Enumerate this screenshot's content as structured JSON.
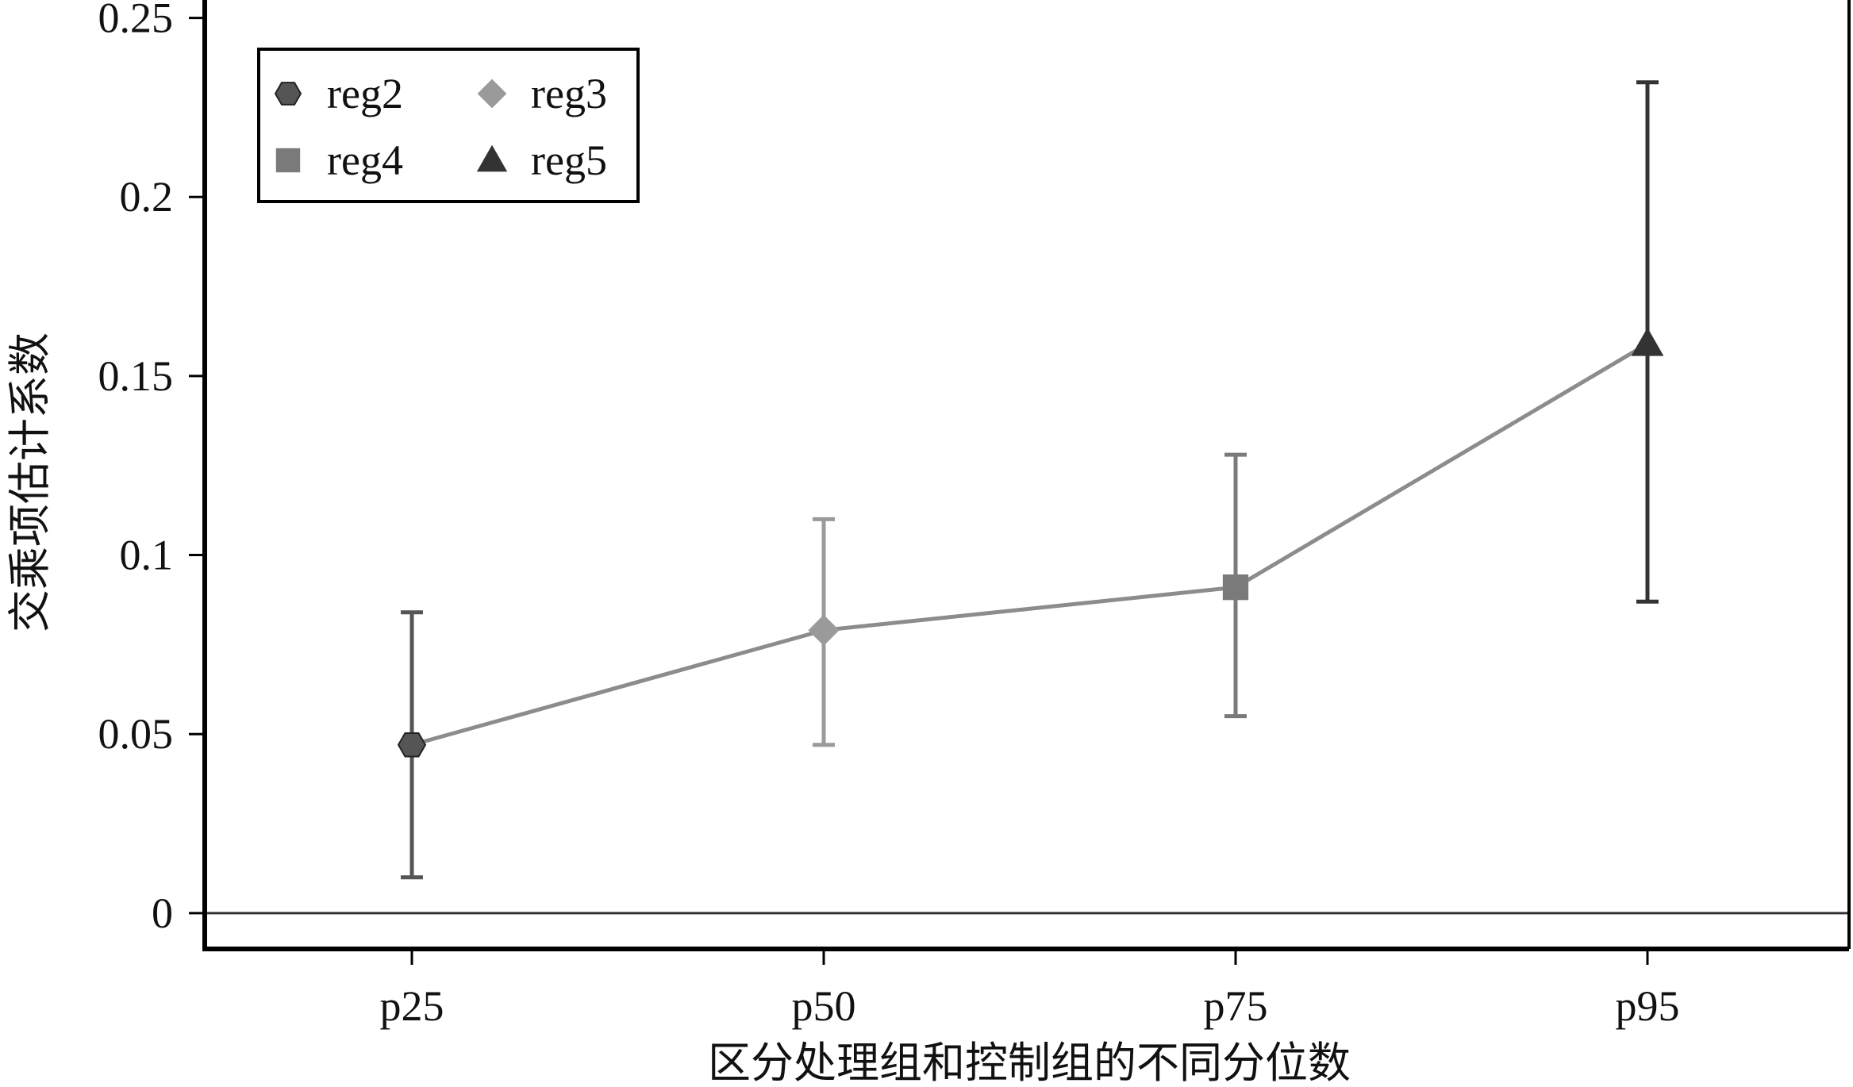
{
  "chart_data": {
    "type": "line",
    "xlabel": "区分处理组和控制组的不同分位数",
    "ylabel": "交乘项估计系数",
    "categories": [
      "p25",
      "p50",
      "p75",
      "p95"
    ],
    "ylim": [
      -0.01,
      0.255
    ],
    "yticks": [
      0,
      0.05,
      0.1,
      0.15,
      0.2,
      0.25
    ],
    "ytick_labels": [
      "0",
      "0.05",
      "0.1",
      "0.15",
      "0.2",
      "0.25"
    ],
    "grid": false,
    "zero_line": true,
    "legend_position": "top-left",
    "line_color": "#8c8c8c",
    "points": [
      {
        "name": "reg2",
        "category": "p25",
        "estimate": 0.047,
        "ci_low": 0.01,
        "ci_high": 0.084,
        "marker": "hexagon",
        "color": "#555555"
      },
      {
        "name": "reg3",
        "category": "p50",
        "estimate": 0.079,
        "ci_low": 0.047,
        "ci_high": 0.11,
        "marker": "diamond",
        "color": "#9a9a9a"
      },
      {
        "name": "reg4",
        "category": "p75",
        "estimate": 0.091,
        "ci_low": 0.055,
        "ci_high": 0.128,
        "marker": "square",
        "color": "#7a7a7a"
      },
      {
        "name": "reg5",
        "category": "p95",
        "estimate": 0.159,
        "ci_low": 0.087,
        "ci_high": 0.232,
        "marker": "triangle",
        "color": "#333333"
      }
    ],
    "legend": [
      {
        "label": "reg2",
        "marker": "hexagon",
        "color": "#555555"
      },
      {
        "label": "reg3",
        "marker": "diamond",
        "color": "#9a9a9a"
      },
      {
        "label": "reg4",
        "marker": "square",
        "color": "#7a7a7a"
      },
      {
        "label": "reg5",
        "marker": "triangle",
        "color": "#333333"
      }
    ]
  }
}
